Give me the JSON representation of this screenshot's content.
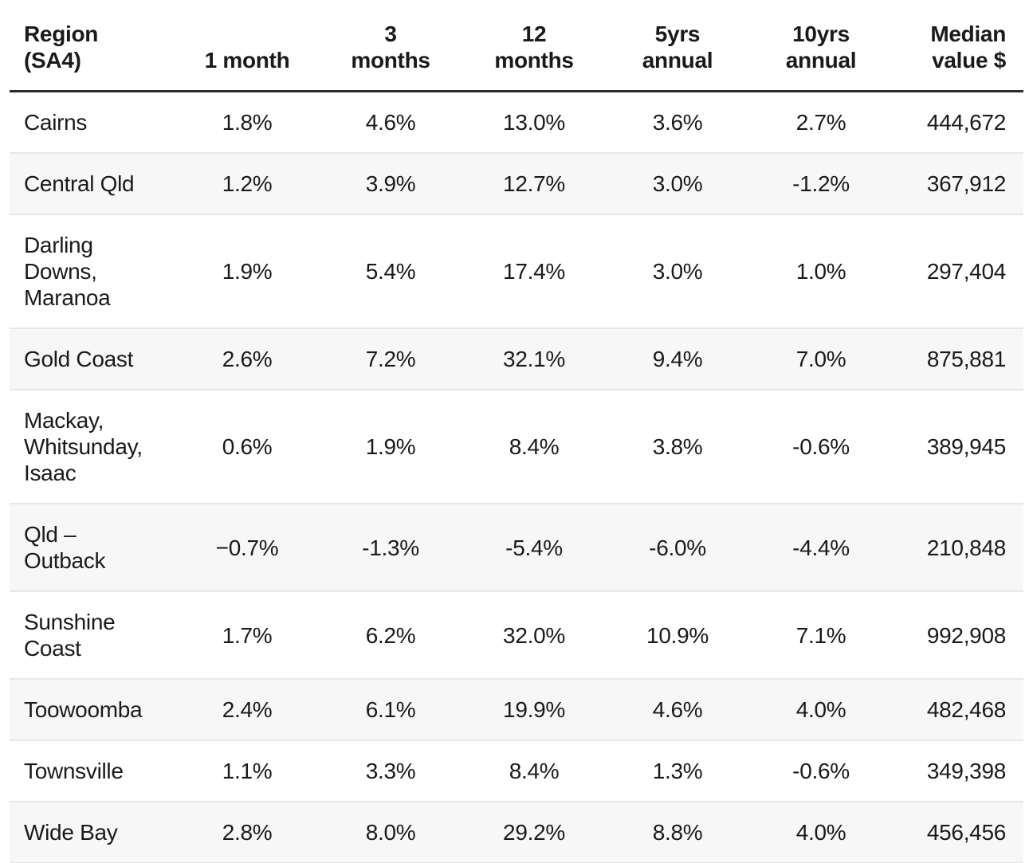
{
  "chart_data": {
    "type": "table",
    "columns": [
      "Region (SA4)",
      "1 month",
      "3 months",
      "12 months",
      "5yrs annual",
      "10yrs annual",
      "Median value $"
    ],
    "rows": [
      [
        "Cairns",
        "1.8%",
        "4.6%",
        "13.0%",
        "3.6%",
        "2.7%",
        "444,672"
      ],
      [
        "Central Qld",
        "1.2%",
        "3.9%",
        "12.7%",
        "3.0%",
        "-1.2%",
        "367,912"
      ],
      [
        "Darling Downs, Maranoa",
        "1.9%",
        "5.4%",
        "17.4%",
        "3.0%",
        "1.0%",
        "297,404"
      ],
      [
        "Gold Coast",
        "2.6%",
        "7.2%",
        "32.1%",
        "9.4%",
        "7.0%",
        "875,881"
      ],
      [
        "Mackay, Whitsunday, Isaac",
        "0.6%",
        "1.9%",
        "8.4%",
        "3.8%",
        "-0.6%",
        "389,945"
      ],
      [
        "Qld – Outback",
        "−0.7%",
        "-1.3%",
        "-5.4%",
        "-6.0%",
        "-4.4%",
        "210,848"
      ],
      [
        "Sunshine Coast",
        "1.7%",
        "6.2%",
        "32.0%",
        "10.9%",
        "7.1%",
        "992,908"
      ],
      [
        "Toowoomba",
        "2.4%",
        "6.1%",
        "19.9%",
        "4.6%",
        "4.0%",
        "482,468"
      ],
      [
        "Townsville",
        "1.1%",
        "3.3%",
        "8.4%",
        "1.3%",
        "-0.6%",
        "349,398"
      ],
      [
        "Wide Bay",
        "2.8%",
        "8.0%",
        "29.2%",
        "8.8%",
        "4.0%",
        "456,456"
      ]
    ]
  },
  "table": {
    "header": [
      "Region\n(SA4)",
      "1 month",
      "3\nmonths",
      "12\nmonths",
      "5yrs\nannual",
      "10yrs\nannual",
      "Median\nvalue $"
    ],
    "rows": [
      {
        "region": "Cairns",
        "values": [
          "1.8%",
          "4.6%",
          "13.0%",
          "3.6%",
          "2.7%",
          "444,672"
        ]
      },
      {
        "region": "Central Qld",
        "values": [
          "1.2%",
          "3.9%",
          "12.7%",
          "3.0%",
          "-1.2%",
          "367,912"
        ]
      },
      {
        "region": "Darling\nDowns,\nMaranoa",
        "values": [
          "1.9%",
          "5.4%",
          "17.4%",
          "3.0%",
          "1.0%",
          "297,404"
        ]
      },
      {
        "region": "Gold Coast",
        "values": [
          "2.6%",
          "7.2%",
          "32.1%",
          "9.4%",
          "7.0%",
          "875,881"
        ]
      },
      {
        "region": "Mackay,\nWhitsunday,\nIsaac",
        "values": [
          "0.6%",
          "1.9%",
          "8.4%",
          "3.8%",
          "-0.6%",
          "389,945"
        ]
      },
      {
        "region": "Qld –\nOutback",
        "values": [
          "−0.7%",
          "-1.3%",
          "-5.4%",
          "-6.0%",
          "-4.4%",
          "210,848"
        ]
      },
      {
        "region": "Sunshine\nCoast",
        "values": [
          "1.7%",
          "6.2%",
          "32.0%",
          "10.9%",
          "7.1%",
          "992,908"
        ]
      },
      {
        "region": "Toowoomba",
        "values": [
          "2.4%",
          "6.1%",
          "19.9%",
          "4.6%",
          "4.0%",
          "482,468"
        ]
      },
      {
        "region": "Townsville",
        "values": [
          "1.1%",
          "3.3%",
          "8.4%",
          "1.3%",
          "-0.6%",
          "349,398"
        ]
      },
      {
        "region": "Wide Bay",
        "values": [
          "2.8%",
          "8.0%",
          "29.2%",
          "8.8%",
          "4.0%",
          "456,456"
        ]
      }
    ]
  },
  "colors": {
    "text": "#1a1a1a",
    "stripe_row_bg": "#f7f7f7",
    "header_rule": "#2b2b2b",
    "row_divider": "#e7e7e7"
  }
}
